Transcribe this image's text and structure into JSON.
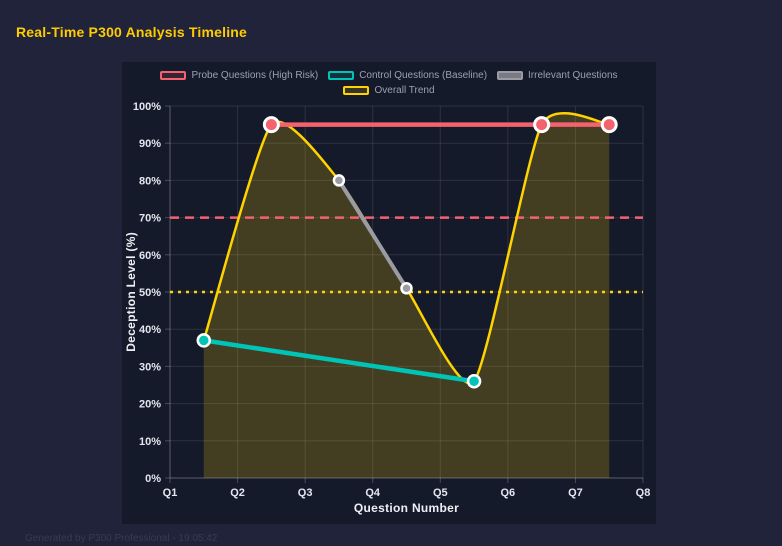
{
  "page": {
    "title": "Real-Time P300 Analysis Timeline",
    "footer": "Generated by P300 Professional - 19:05:42"
  },
  "colors": {
    "background": "#20233a",
    "panel_background": "#151a2b",
    "title": "#ffcc00",
    "grid": "rgba(255,255,255,0.10)",
    "axis_line": "rgba(255,255,255,0.22)",
    "axis_text": "#e3e6ee",
    "axis_title_text": "#eef0f6",
    "legend_text": "#9aa0b0",
    "marker_ring": "#ffffff",
    "probe": "#f4626e",
    "control": "#00c4b5",
    "irrelevant": "#9b9ca3",
    "trend": "#ffd300",
    "trend_fill": "rgba(255,211,0,0.20)"
  },
  "chart_data": {
    "type": "line",
    "title": "Real-Time P300 Analysis Timeline",
    "xlabel": "Question Number",
    "ylabel": "Deception Level (%)",
    "x_ticks": [
      "Q1",
      "Q2",
      "Q3",
      "Q4",
      "Q5",
      "Q6",
      "Q7",
      "Q8"
    ],
    "x_range": [
      1,
      8
    ],
    "ylim": [
      0,
      100
    ],
    "y_tick_step": 10,
    "y_tick_suffix": "%",
    "grid": true,
    "legend_position": "top",
    "series": [
      {
        "name": "Probe Questions (High Risk)",
        "color": "#f4626e",
        "swatch_fill": "rgba(244,98,110,0.14)",
        "x": [
          2.5,
          6.5,
          7.5
        ],
        "values": [
          95,
          95,
          95
        ],
        "smooth": false,
        "fill": false,
        "line_width": 4.5,
        "marker_radius": 7,
        "marker_stroke": 3
      },
      {
        "name": "Control Questions (Baseline)",
        "color": "#00c4b5",
        "swatch_fill": "rgba(0,196,181,0.14)",
        "x": [
          1.5,
          5.5
        ],
        "values": [
          37,
          26
        ],
        "smooth": false,
        "fill": false,
        "line_width": 4.5,
        "marker_radius": 6,
        "marker_stroke": 2.5
      },
      {
        "name": "Irrelevant Questions",
        "color": "#9b9ca3",
        "swatch_fill": "rgba(155,156,163,0.75)",
        "x": [
          3.5,
          4.5
        ],
        "values": [
          80,
          51
        ],
        "smooth": false,
        "fill": false,
        "line_width": 4,
        "marker_radius": 5,
        "marker_stroke": 2.5
      },
      {
        "name": "Overall Trend",
        "color": "#ffd300",
        "swatch_fill": "rgba(255,211,0,0.14)",
        "x": [
          1.5,
          2.5,
          3.5,
          4.5,
          5.5,
          6.5,
          7.5
        ],
        "values": [
          37,
          95,
          80,
          51,
          26,
          95,
          95
        ],
        "smooth": true,
        "fill": true,
        "line_width": 2.5,
        "marker_radius": 0,
        "marker_stroke": 0
      }
    ],
    "thresholds": [
      {
        "value": 70,
        "color": "#f4626e",
        "style": "dashed"
      },
      {
        "value": 50,
        "color": "#ffd300",
        "style": "dotted"
      }
    ]
  }
}
